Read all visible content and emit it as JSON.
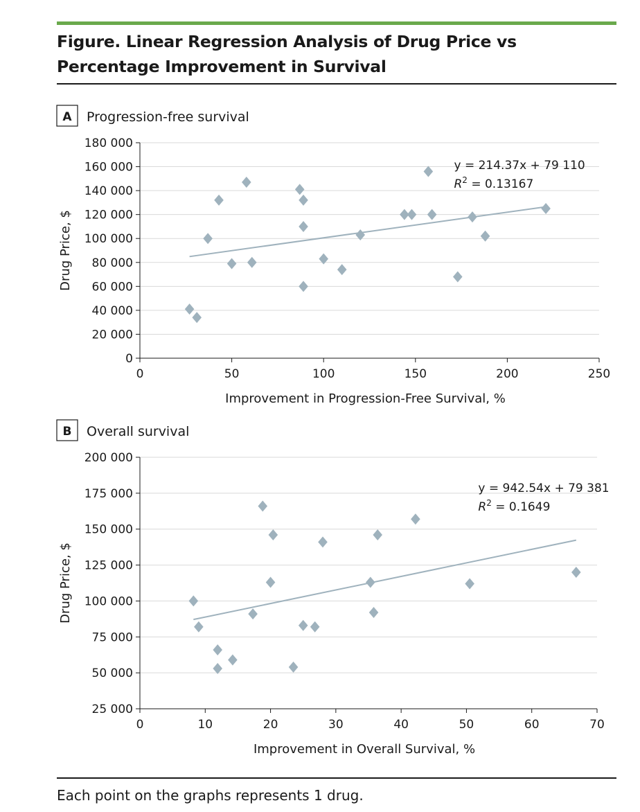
{
  "figure": {
    "title": "Figure. Linear Regression Analysis of Drug Price vs Percentage Improvement in Survival",
    "footnote": "Each point on the graphs represents 1 drug."
  },
  "chart_data": [
    {
      "type": "scatter",
      "panel": "A",
      "panel_title": "Progression-free survival",
      "xlabel": "Improvement in Progression-Free Survival, %",
      "ylabel": "Drug Price, $",
      "xlim": [
        0,
        250
      ],
      "ylim": [
        0,
        180000
      ],
      "xticks": [
        0,
        50,
        100,
        150,
        200,
        250
      ],
      "yticks": [
        0,
        20000,
        40000,
        60000,
        80000,
        100000,
        120000,
        140000,
        160000,
        180000
      ],
      "xtick_labels": [
        "0",
        "50",
        "100",
        "150",
        "200",
        "250"
      ],
      "ytick_labels": [
        "0",
        "20 000",
        "40 000",
        "60 000",
        "80 000",
        "100 000",
        "120 000",
        "140 000",
        "160 000",
        "180 000"
      ],
      "grid": "horizontal",
      "marker_color": "#9fb2bd",
      "line_color": "#9fb2bd",
      "points": [
        {
          "x": 27,
          "y": 41000
        },
        {
          "x": 31,
          "y": 34000
        },
        {
          "x": 37,
          "y": 100000
        },
        {
          "x": 43,
          "y": 132000
        },
        {
          "x": 50,
          "y": 79000
        },
        {
          "x": 58,
          "y": 147000
        },
        {
          "x": 61,
          "y": 80000
        },
        {
          "x": 87,
          "y": 141000
        },
        {
          "x": 89,
          "y": 132000
        },
        {
          "x": 89,
          "y": 110000
        },
        {
          "x": 89,
          "y": 60000
        },
        {
          "x": 100,
          "y": 83000
        },
        {
          "x": 110,
          "y": 74000
        },
        {
          "x": 120,
          "y": 103000
        },
        {
          "x": 144,
          "y": 120000
        },
        {
          "x": 148,
          "y": 120000
        },
        {
          "x": 157,
          "y": 156000
        },
        {
          "x": 159,
          "y": 120000
        },
        {
          "x": 173,
          "y": 68000
        },
        {
          "x": 181,
          "y": 118000
        },
        {
          "x": 188,
          "y": 102000
        },
        {
          "x": 221,
          "y": 125000
        }
      ],
      "regression": {
        "slope": 214.37,
        "intercept": 79110,
        "x_range": [
          27,
          221
        ]
      },
      "equation_lines": [
        "y = 214.37x + 79 110",
        "R",
        "2",
        " = 0.13167"
      ],
      "equation_anchor": {
        "x": 171,
        "y": 158000
      }
    },
    {
      "type": "scatter",
      "panel": "B",
      "panel_title": "Overall survival",
      "xlabel": "Improvement in Overall Survival, %",
      "ylabel": "Drug Price, $",
      "xlim": [
        0,
        70
      ],
      "ylim": [
        25000,
        200000
      ],
      "xticks": [
        0,
        10,
        20,
        30,
        40,
        50,
        60,
        70
      ],
      "yticks": [
        25000,
        50000,
        75000,
        100000,
        125000,
        150000,
        175000,
        200000
      ],
      "xtick_labels": [
        "0",
        "10",
        "20",
        "30",
        "40",
        "50",
        "60",
        "70"
      ],
      "ytick_labels": [
        "25 000",
        "50 000",
        "75 000",
        "100 000",
        "125 000",
        "150 000",
        "175 000",
        "200 000"
      ],
      "grid": "horizontal",
      "marker_color": "#9fb2bd",
      "line_color": "#9fb2bd",
      "points": [
        {
          "x": 8.2,
          "y": 100000
        },
        {
          "x": 9.0,
          "y": 82000
        },
        {
          "x": 11.9,
          "y": 66000
        },
        {
          "x": 11.9,
          "y": 53000
        },
        {
          "x": 14.2,
          "y": 59000
        },
        {
          "x": 17.3,
          "y": 91000
        },
        {
          "x": 18.8,
          "y": 166000
        },
        {
          "x": 20.0,
          "y": 113000
        },
        {
          "x": 20.4,
          "y": 146000
        },
        {
          "x": 23.5,
          "y": 54000
        },
        {
          "x": 25.0,
          "y": 83000
        },
        {
          "x": 26.8,
          "y": 82000
        },
        {
          "x": 28.0,
          "y": 141000
        },
        {
          "x": 35.3,
          "y": 113000
        },
        {
          "x": 35.8,
          "y": 92000
        },
        {
          "x": 36.4,
          "y": 146000
        },
        {
          "x": 42.2,
          "y": 157000
        },
        {
          "x": 50.5,
          "y": 112000
        },
        {
          "x": 66.8,
          "y": 120000
        }
      ],
      "regression": {
        "slope": 942.54,
        "intercept": 79381,
        "x_range": [
          8.2,
          66.8
        ]
      },
      "equation_lines": [
        "y = 942.54x + 79 381",
        "R",
        "2",
        " = 0.1649"
      ],
      "equation_anchor": {
        "x": 51.8,
        "y": 176000
      }
    }
  ]
}
